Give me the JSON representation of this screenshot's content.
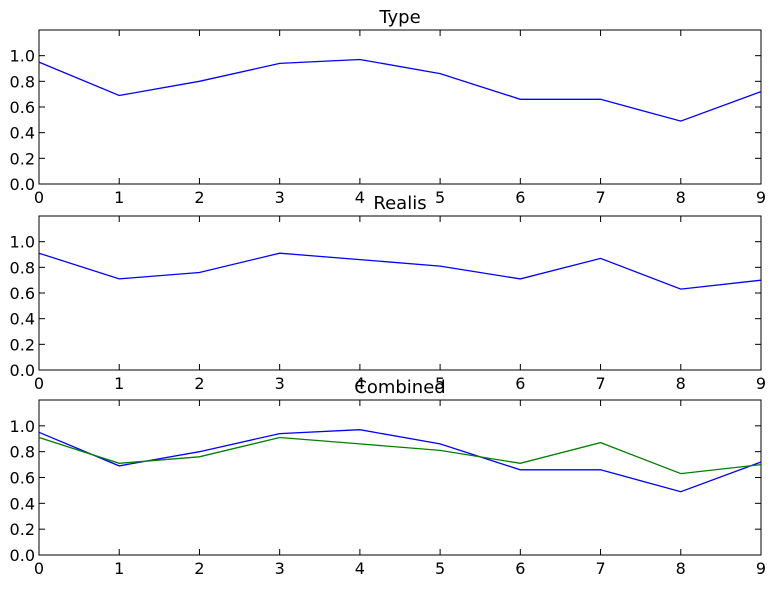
{
  "chart_data": [
    {
      "type": "line",
      "title": "Type",
      "xlabel": "",
      "ylabel": "",
      "x": [
        0,
        1,
        2,
        3,
        4,
        5,
        6,
        7,
        8,
        9
      ],
      "xlim": [
        0,
        9
      ],
      "ylim": [
        0,
        1.2
      ],
      "xticks": [
        "0",
        "1",
        "2",
        "3",
        "4",
        "5",
        "6",
        "7",
        "8",
        "9"
      ],
      "yticks": [
        "0.0",
        "0.2",
        "0.4",
        "0.6",
        "0.8",
        "1.0"
      ],
      "grid": false,
      "series": [
        {
          "color": "#0000ff",
          "values": [
            0.95,
            0.69,
            0.8,
            0.94,
            0.97,
            0.86,
            0.66,
            0.66,
            0.49,
            0.72
          ]
        }
      ]
    },
    {
      "type": "line",
      "title": "Realis",
      "xlabel": "",
      "ylabel": "",
      "x": [
        0,
        1,
        2,
        3,
        4,
        5,
        6,
        7,
        8,
        9
      ],
      "xlim": [
        0,
        9
      ],
      "ylim": [
        0,
        1.2
      ],
      "xticks": [
        "0",
        "1",
        "2",
        "3",
        "4",
        "5",
        "6",
        "7",
        "8",
        "9"
      ],
      "yticks": [
        "0.0",
        "0.2",
        "0.4",
        "0.6",
        "0.8",
        "1.0"
      ],
      "grid": false,
      "series": [
        {
          "color": "#0000ff",
          "values": [
            0.91,
            0.71,
            0.76,
            0.91,
            0.86,
            0.81,
            0.71,
            0.87,
            0.63,
            0.7
          ]
        }
      ]
    },
    {
      "type": "line",
      "title": "Combined",
      "xlabel": "",
      "ylabel": "",
      "x": [
        0,
        1,
        2,
        3,
        4,
        5,
        6,
        7,
        8,
        9
      ],
      "xlim": [
        0,
        9
      ],
      "ylim": [
        0,
        1.2
      ],
      "xticks": [
        "0",
        "1",
        "2",
        "3",
        "4",
        "5",
        "6",
        "7",
        "8",
        "9"
      ],
      "yticks": [
        "0.0",
        "0.2",
        "0.4",
        "0.6",
        "0.8",
        "1.0"
      ],
      "grid": false,
      "series": [
        {
          "color": "#0000ff",
          "values": [
            0.95,
            0.69,
            0.8,
            0.94,
            0.97,
            0.86,
            0.66,
            0.66,
            0.49,
            0.72
          ]
        },
        {
          "color": "#008000",
          "values": [
            0.91,
            0.71,
            0.76,
            0.91,
            0.86,
            0.81,
            0.71,
            0.87,
            0.63,
            0.7
          ]
        }
      ]
    }
  ]
}
